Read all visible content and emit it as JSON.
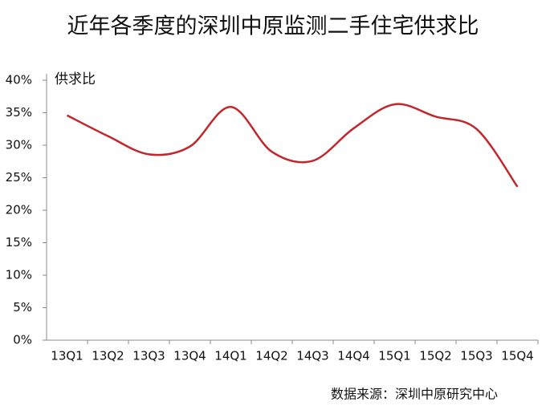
{
  "chart_data": {
    "type": "line",
    "title": "近年各季度的深圳中原监测二手住宅供求比",
    "y_label": "供求比",
    "source": "数据来源：深圳中原研究中心",
    "categories": [
      "13Q1",
      "13Q2",
      "13Q3",
      "13Q4",
      "14Q1",
      "14Q2",
      "14Q3",
      "14Q4",
      "15Q1",
      "15Q2",
      "15Q3",
      "15Q4"
    ],
    "series": [
      {
        "name": "供求比",
        "color": "#c0282d",
        "values": [
          34.6,
          31.4,
          28.6,
          29.8,
          35.9,
          29.0,
          27.6,
          32.6,
          36.3,
          34.4,
          32.5,
          23.6
        ]
      }
    ],
    "ylim": [
      0,
      40
    ],
    "yticks": [
      {
        "value": 0,
        "label": "0%"
      },
      {
        "value": 5,
        "label": "5%"
      },
      {
        "value": 10,
        "label": "10%"
      },
      {
        "value": 15,
        "label": "15%"
      },
      {
        "value": 20,
        "label": "20%"
      },
      {
        "value": 25,
        "label": "25%"
      },
      {
        "value": 30,
        "label": "30%"
      },
      {
        "value": 35,
        "label": "35%"
      },
      {
        "value": 40,
        "label": "40%"
      }
    ],
    "grid": false
  }
}
